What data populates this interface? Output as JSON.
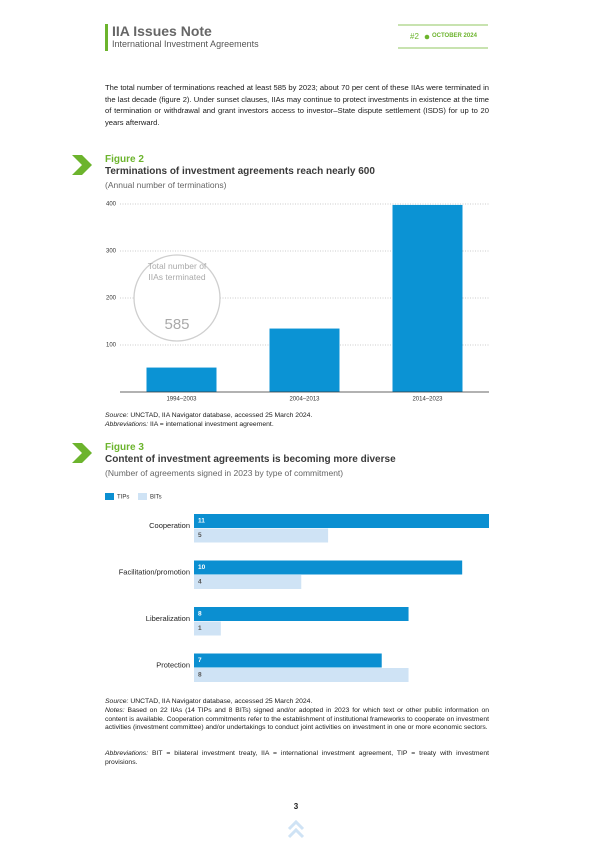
{
  "header": {
    "title": "IIA Issues Note",
    "subtitle": "International Investment Agreements",
    "issue": "#2",
    "date": "OCTOBER 2024"
  },
  "body": {
    "paragraph": "The total number of terminations reached at least 585 by 2023; about 70 per cent of these IIAs were terminated in the last decade (figure 2). Under sunset clauses, IIAs may continue to protect investments in existence at the time of termination or withdrawal and grant investors access to investor–State dispute settlement (ISDS) for up to 20 years afterward."
  },
  "chart_data": [
    {
      "type": "bar",
      "label": "Figure 2",
      "title": "Terminations of investment agreements reach nearly 600",
      "subtitle": "(Annual number of terminations)",
      "categories": [
        "1994–2003",
        "2004–2013",
        "2014–2023"
      ],
      "values": [
        52,
        135,
        398
      ],
      "color": "#0b93d4",
      "ylim": [
        0,
        400
      ],
      "yticks": [
        100,
        200,
        300,
        400
      ],
      "grid": true,
      "annotation": {
        "text": "Total number of IIAs terminated",
        "value": 585
      },
      "source_label": "Source:",
      "source": "UNCTAD, IIA Navigator database, accessed 25 March 2024.",
      "abbreviations_label": "Abbreviations:",
      "abbreviations": "IIA = international investment agreement."
    },
    {
      "type": "hbar",
      "label": "Figure 3",
      "title": "Content of investment agreements is becoming more diverse",
      "subtitle": "(Number of agreements signed in 2023 by type of commitment)",
      "categories": [
        "Cooperation",
        "Facilitation/promotion",
        "Liberalization",
        "Protection"
      ],
      "series": [
        {
          "name": "TIPs",
          "color": "#0b8fd1",
          "values": [
            11,
            10,
            8,
            7
          ]
        },
        {
          "name": "BITs",
          "color": "#cfe3f5",
          "values": [
            5,
            4,
            1,
            8
          ]
        }
      ],
      "xlim": [
        0,
        11
      ],
      "source_label": "Source:",
      "source": "UNCTAD, IIA Navigator database, accessed 25 March 2024.",
      "notes_label": "Notes:",
      "notes": "Based on 22 IIAs (14 TIPs and 8 BITs) signed and/or adopted in 2023 for which text or other public information on content is available. Cooperation commitments refer to the establishment of institutional frameworks to cooperate on investment activities (investment committee) and/or undertakings to conduct joint activities on investment in one or more economic sectors.",
      "abbreviations_label": "Abbreviations:",
      "abbreviations": "BIT = bilateral investment treaty, IIA = international investment agreement, TIP = treaty with investment provisions."
    }
  ],
  "footer": {
    "page": 3
  }
}
